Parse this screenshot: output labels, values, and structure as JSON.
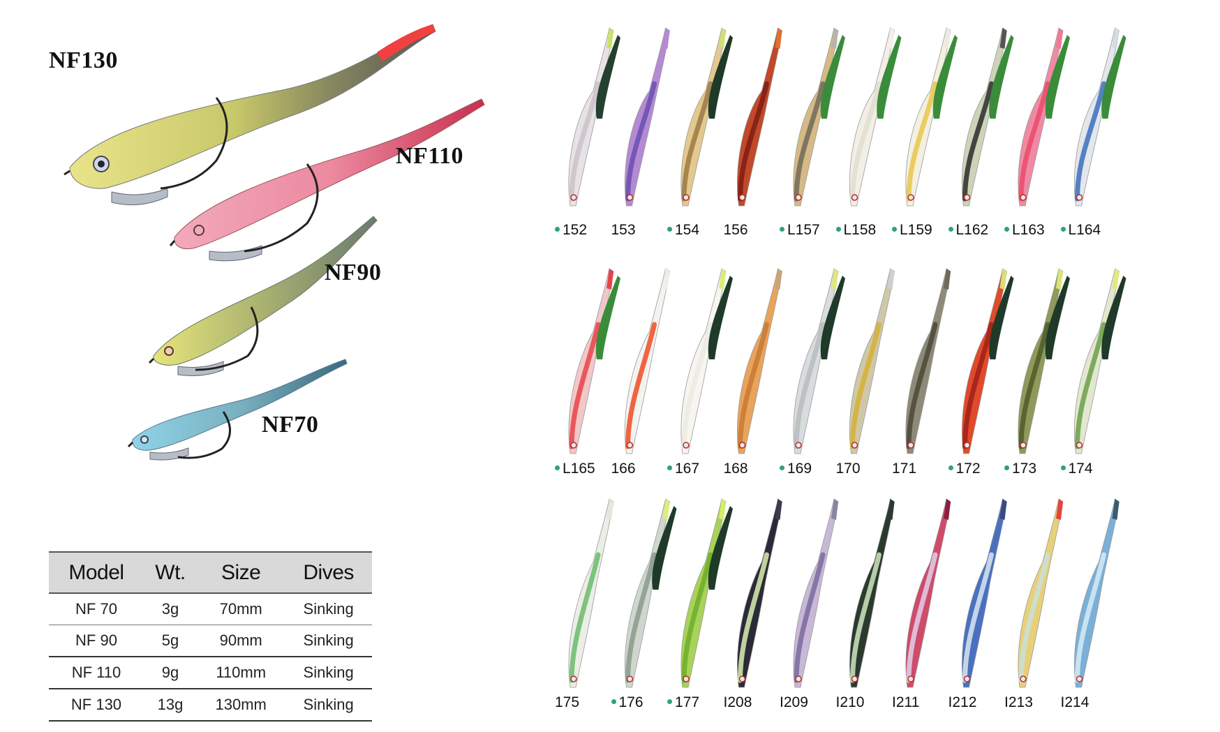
{
  "models": [
    "NF130",
    "NF110",
    "NF90",
    "NF70"
  ],
  "spec_table": {
    "headers": [
      "Model",
      "Wt.",
      "Size",
      "Dives"
    ],
    "rows": [
      [
        "NF 70",
        "3g",
        "70mm",
        "Sinking"
      ],
      [
        "NF 90",
        "5g",
        "90mm",
        "Sinking"
      ],
      [
        "NF 110",
        "9g",
        "110mm",
        "Sinking"
      ],
      [
        "NF 130",
        "13g",
        "130mm",
        "Sinking"
      ]
    ]
  },
  "color_rows": [
    [
      {
        "code": "152",
        "dot": true,
        "body": "#e8e2e6",
        "accent": "#c9c3c8",
        "tail": "#c9e36a",
        "spare": "#24402e"
      },
      {
        "code": "153",
        "dot": false,
        "body": "#b48ad3",
        "accent": "#6a4fb0",
        "tail": "#b48ad3",
        "spare": null
      },
      {
        "code": "154",
        "dot": true,
        "body": "#e3c98f",
        "accent": "#9a7a45",
        "tail": "#cfe07a",
        "spare": "#1f3a28"
      },
      {
        "code": "156",
        "dot": false,
        "body": "#c2482a",
        "accent": "#7e1d14",
        "tail": "#e07030",
        "spare": null
      },
      {
        "code": "L157",
        "dot": true,
        "body": "#d6b985",
        "accent": "#6e6a5a",
        "tail": "#b7b4a8",
        "spare": "#3a8c3a"
      },
      {
        "code": "L158",
        "dot": true,
        "body": "#f1efe6",
        "accent": "#e0ddd0",
        "tail": "#f2f0e8",
        "spare": "#3a8c3a"
      },
      {
        "code": "L159",
        "dot": true,
        "body": "#f3f0df",
        "accent": "#e8c54a",
        "tail": "#eeeae0",
        "spare": "#3a8c3a"
      },
      {
        "code": "L162",
        "dot": true,
        "body": "#cdd3b7",
        "accent": "#2b2b2b",
        "tail": "#555",
        "spare": "#3a8c3a"
      },
      {
        "code": "L163",
        "dot": true,
        "body": "#f08aa4",
        "accent": "#e94b6b",
        "tail": "#f07a95",
        "spare": "#3a8c3a"
      },
      {
        "code": "L164",
        "dot": true,
        "body": "#e3e6ea",
        "accent": "#3b6fc0",
        "tail": "#d7dade",
        "spare": "#3a8c3a"
      }
    ],
    [
      {
        "code": "L165",
        "dot": true,
        "body": "#f0c8c8",
        "accent": "#e8434a",
        "tail": "#e8434a",
        "spare": "#3a8c3a"
      },
      {
        "code": "166",
        "dot": false,
        "body": "#f4f3ef",
        "accent": "#f04a23",
        "tail": "#efeee9",
        "spare": null
      },
      {
        "code": "167",
        "dot": true,
        "body": "#f6f5f0",
        "accent": "#eceae2",
        "tail": "#d9ee7a",
        "spare": "#1f3a28"
      },
      {
        "code": "168",
        "dot": false,
        "body": "#e9a35b",
        "accent": "#c77a36",
        "tail": "#c8a579",
        "spare": null
      },
      {
        "code": "169",
        "dot": true,
        "body": "#d9dcdc",
        "accent": "#b9bcbe",
        "tail": "#dfe87a",
        "spare": "#1f3a28"
      },
      {
        "code": "170",
        "dot": false,
        "body": "#cfc8a8",
        "accent": "#d6b032",
        "tail": "#cdd0cf",
        "spare": null
      },
      {
        "code": "171",
        "dot": false,
        "body": "#8f8a78",
        "accent": "#4b4838",
        "tail": "#6e6a5c",
        "spare": null
      },
      {
        "code": "172",
        "dot": true,
        "body": "#e04a2a",
        "accent": "#a02018",
        "tail": "#d6e07a",
        "spare": "#1f3a28"
      },
      {
        "code": "173",
        "dot": true,
        "body": "#8f9a5a",
        "accent": "#4f5a2a",
        "tail": "#dbe47a",
        "spare": "#1f3a28"
      },
      {
        "code": "174",
        "dot": true,
        "body": "#e3e7cf",
        "accent": "#6ba04a",
        "tail": "#e0ec7a",
        "spare": "#1f3a28"
      }
    ],
    [
      {
        "code": "175",
        "dot": false,
        "body": "#eaeee6",
        "accent": "#6bba6b",
        "tail": "#e1e8dc",
        "spare": null
      },
      {
        "code": "176",
        "dot": true,
        "body": "#cfd6cf",
        "accent": "#8a9a8a",
        "tail": "#e0ec7a",
        "spare": "#1f3a28"
      },
      {
        "code": "177",
        "dot": true,
        "body": "#a8d25a",
        "accent": "#6fae2a",
        "tail": "#d6ee6a",
        "spare": "#1f3a28"
      },
      {
        "code": "I208",
        "dot": false,
        "body": "#2a2a38",
        "accent": "#d9f0b0",
        "tail": "#3a3a50",
        "spare": null
      },
      {
        "code": "I209",
        "dot": false,
        "body": "#c8b8d6",
        "accent": "#7a6aa0",
        "tail": "#8a84a0",
        "spare": null
      },
      {
        "code": "I210",
        "dot": false,
        "body": "#2b3a2f",
        "accent": "#cfe6c0",
        "tail": "#2d3a31",
        "spare": null
      },
      {
        "code": "I211",
        "dot": false,
        "body": "#d04a6a",
        "accent": "#e0d0e8",
        "tail": "#8a2040",
        "spare": null
      },
      {
        "code": "I212",
        "dot": false,
        "body": "#4a70c0",
        "accent": "#d9e6f0",
        "tail": "#3a4a80",
        "spare": null
      },
      {
        "code": "I213",
        "dot": false,
        "body": "#e8d07a",
        "accent": "#c8e0d8",
        "tail": "#e8433a",
        "spare": null
      },
      {
        "code": "I214",
        "dot": false,
        "body": "#7ab0d8",
        "accent": "#d6ecf4",
        "tail": "#3a5a70",
        "spare": null
      }
    ]
  ]
}
